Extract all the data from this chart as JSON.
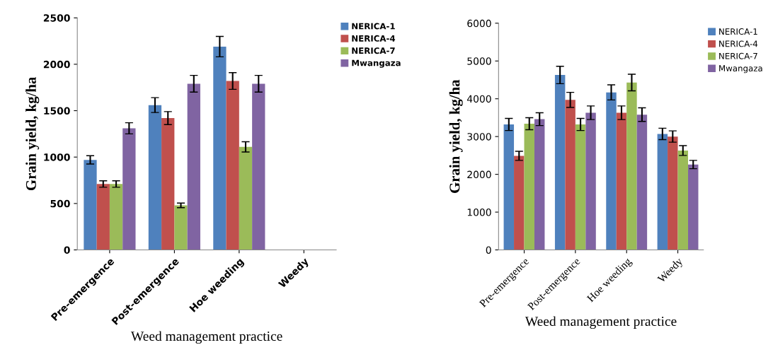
{
  "chart_data": [
    {
      "type": "bar",
      "xlabel": "Weed management practice",
      "ylabel": "Grain yield, kg/ha",
      "categories": [
        "Pre-emergence",
        "Post-emergence",
        "Hoe weeding",
        "Weedy"
      ],
      "ylim": [
        0,
        2500
      ],
      "yticks": [
        0,
        500,
        1000,
        1500,
        2000,
        2500
      ],
      "grid": false,
      "legend": "right",
      "series": [
        {
          "name": "NERICA-1",
          "color": "#4f81bd",
          "values": [
            970,
            1560,
            2190,
            null
          ],
          "errors": [
            45,
            80,
            110,
            null
          ]
        },
        {
          "name": "NERICA-4",
          "color": "#c0504d",
          "values": [
            710,
            1420,
            1820,
            null
          ],
          "errors": [
            35,
            70,
            90,
            null
          ]
        },
        {
          "name": "NERICA-7",
          "color": "#9bbb59",
          "values": [
            710,
            480,
            1110,
            null
          ],
          "errors": [
            35,
            25,
            55,
            null
          ]
        },
        {
          "name": "Mwangaza",
          "color": "#8064a2",
          "values": [
            1310,
            1790,
            1790,
            null
          ],
          "errors": [
            60,
            90,
            90,
            null
          ]
        }
      ]
    },
    {
      "type": "bar",
      "xlabel": "Weed management practice",
      "ylabel": "Grain yield, kg/ha",
      "categories": [
        "Pre-emergence",
        "Post-emergence",
        "Hoe weeding",
        "Weedy"
      ],
      "ylim": [
        0,
        6000
      ],
      "yticks": [
        0,
        1000,
        2000,
        3000,
        4000,
        5000,
        6000
      ],
      "grid": false,
      "legend": "right",
      "series": [
        {
          "name": "NERICA-1",
          "color": "#4f81bd",
          "values": [
            3320,
            4630,
            4170,
            3070
          ],
          "errors": [
            160,
            230,
            200,
            150
          ]
        },
        {
          "name": "NERICA-4",
          "color": "#c0504d",
          "values": [
            2490,
            3970,
            3630,
            3000
          ],
          "errors": [
            120,
            200,
            180,
            150
          ]
        },
        {
          "name": "NERICA-7",
          "color": "#9bbb59",
          "values": [
            3340,
            3320,
            4430,
            2630
          ],
          "errors": [
            160,
            160,
            220,
            130
          ]
        },
        {
          "name": "Mwangaza",
          "color": "#8064a2",
          "values": [
            3460,
            3630,
            3580,
            2260
          ],
          "errors": [
            170,
            180,
            180,
            110
          ]
        }
      ]
    }
  ]
}
